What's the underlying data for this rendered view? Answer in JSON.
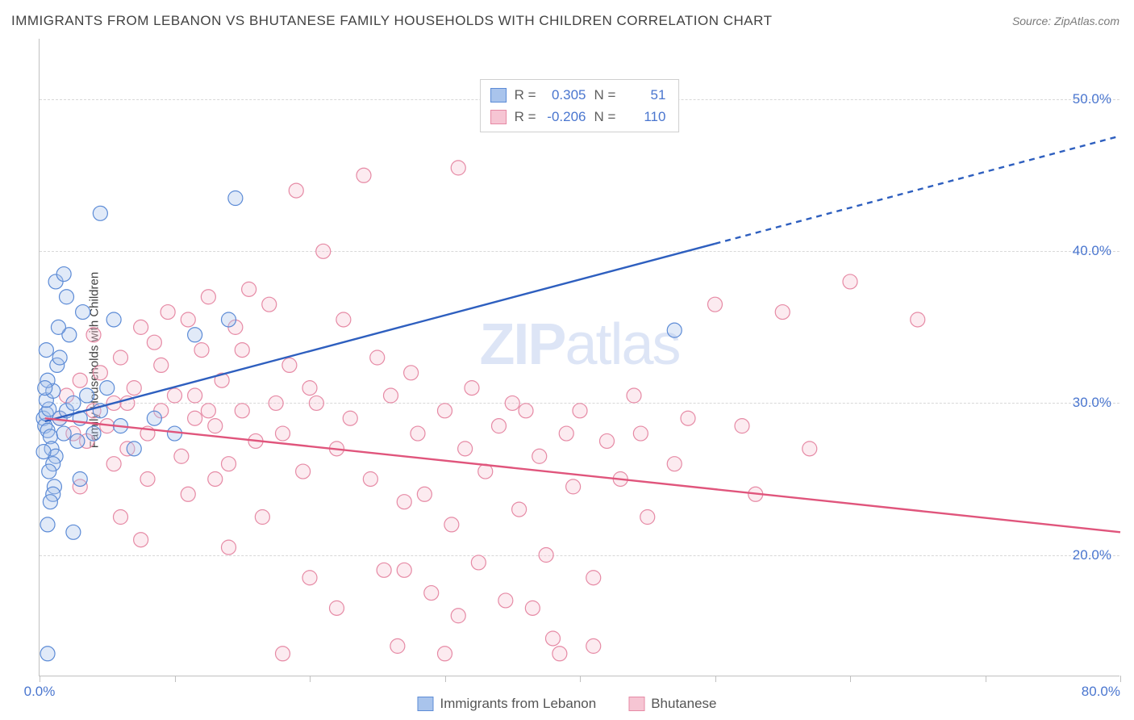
{
  "title": "IMMIGRANTS FROM LEBANON VS BHUTANESE FAMILY HOUSEHOLDS WITH CHILDREN CORRELATION CHART",
  "source": "Source: ZipAtlas.com",
  "y_axis_label": "Family Households with Children",
  "watermark_a": "ZIP",
  "watermark_b": "atlas",
  "chart": {
    "type": "scatter-correlation",
    "background_color": "#ffffff",
    "grid_color": "#d8d8d8",
    "axis_color": "#c0c0c0",
    "tick_label_color": "#4a76cf",
    "tick_fontsize": 17,
    "title_fontsize": 17,
    "title_color": "#424242",
    "xlim": [
      0,
      80
    ],
    "ylim": [
      12,
      54
    ],
    "y_gridlines": [
      20,
      30,
      40,
      50
    ],
    "y_tick_labels": [
      "20.0%",
      "30.0%",
      "40.0%",
      "50.0%"
    ],
    "x_ticks": [
      0,
      10,
      20,
      30,
      40,
      50,
      60,
      70,
      80
    ],
    "x_tick_labels": {
      "0": "0.0%",
      "80": "80.0%"
    },
    "marker_radius": 9,
    "marker_stroke_width": 1.2,
    "marker_fill_opacity": 0.35,
    "line_width": 2.4
  },
  "series": [
    {
      "name": "Immigrants from Lebanon",
      "color_stroke": "#5c8bd6",
      "color_fill": "#a9c4ec",
      "trend_color": "#2e5fbf",
      "R": "0.305",
      "N": "51",
      "trend": {
        "x1": 0.4,
        "y1": 28.8,
        "x2": 50.0,
        "y2": 40.5,
        "x_solid_end": 50.0,
        "x_dash_end": 80.0,
        "y_dash_end": 47.6
      },
      "points": [
        [
          0.3,
          29.0
        ],
        [
          0.4,
          28.5
        ],
        [
          0.5,
          29.3
        ],
        [
          0.6,
          28.2
        ],
        [
          0.7,
          29.6
        ],
        [
          0.8,
          27.8
        ],
        [
          0.5,
          30.2
        ],
        [
          0.9,
          27.0
        ],
        [
          1.0,
          30.8
        ],
        [
          1.2,
          26.5
        ],
        [
          0.6,
          31.5
        ],
        [
          1.5,
          29.0
        ],
        [
          1.0,
          26.0
        ],
        [
          0.7,
          25.5
        ],
        [
          1.3,
          32.5
        ],
        [
          1.8,
          28.0
        ],
        [
          1.1,
          24.5
        ],
        [
          2.0,
          29.5
        ],
        [
          1.5,
          33.0
        ],
        [
          2.5,
          30.0
        ],
        [
          1.0,
          24.0
        ],
        [
          0.5,
          33.5
        ],
        [
          2.2,
          34.5
        ],
        [
          2.8,
          27.5
        ],
        [
          1.4,
          35.0
        ],
        [
          3.0,
          29.0
        ],
        [
          0.8,
          23.5
        ],
        [
          3.5,
          30.5
        ],
        [
          2.0,
          37.0
        ],
        [
          4.0,
          28.0
        ],
        [
          1.2,
          38.0
        ],
        [
          0.6,
          22.0
        ],
        [
          4.5,
          29.5
        ],
        [
          5.0,
          31.0
        ],
        [
          3.2,
          36.0
        ],
        [
          1.8,
          38.5
        ],
        [
          6.0,
          28.5
        ],
        [
          5.5,
          35.5
        ],
        [
          7.0,
          27.0
        ],
        [
          8.5,
          29.0
        ],
        [
          10.0,
          28.0
        ],
        [
          11.5,
          34.5
        ],
        [
          14.0,
          35.5
        ],
        [
          14.5,
          43.5
        ],
        [
          4.5,
          42.5
        ],
        [
          47.0,
          34.8
        ],
        [
          2.5,
          21.5
        ],
        [
          3.0,
          25.0
        ],
        [
          0.3,
          26.8
        ],
        [
          0.4,
          31.0
        ],
        [
          0.6,
          13.5
        ]
      ]
    },
    {
      "name": "Bhutanese",
      "color_stroke": "#e68aa5",
      "color_fill": "#f6c5d3",
      "trend_color": "#e0557c",
      "R": "-0.206",
      "N": "110",
      "trend": {
        "x1": 0.4,
        "y1": 29.0,
        "x2": 80.0,
        "y2": 21.5,
        "x_solid_end": 80.0
      },
      "points": [
        [
          1.5,
          29.0
        ],
        [
          2.0,
          30.5
        ],
        [
          2.5,
          28.0
        ],
        [
          3.0,
          31.5
        ],
        [
          3.5,
          27.5
        ],
        [
          4.0,
          29.5
        ],
        [
          4.5,
          32.0
        ],
        [
          5.0,
          28.5
        ],
        [
          5.5,
          30.0
        ],
        [
          6.0,
          33.0
        ],
        [
          6.5,
          27.0
        ],
        [
          7.0,
          31.0
        ],
        [
          7.5,
          35.0
        ],
        [
          8.0,
          28.0
        ],
        [
          8.5,
          34.0
        ],
        [
          9.0,
          29.5
        ],
        [
          9.5,
          36.0
        ],
        [
          10.0,
          30.5
        ],
        [
          10.5,
          26.5
        ],
        [
          11.0,
          35.5
        ],
        [
          11.5,
          29.0
        ],
        [
          12.0,
          33.5
        ],
        [
          12.5,
          37.0
        ],
        [
          13.0,
          28.5
        ],
        [
          13.5,
          31.5
        ],
        [
          14.0,
          26.0
        ],
        [
          14.5,
          35.0
        ],
        [
          15.0,
          29.5
        ],
        [
          15.5,
          37.5
        ],
        [
          16.0,
          27.5
        ],
        [
          17.0,
          36.5
        ],
        [
          18.0,
          28.0
        ],
        [
          18.5,
          32.5
        ],
        [
          19.0,
          44.0
        ],
        [
          19.5,
          25.5
        ],
        [
          20.0,
          31.0
        ],
        [
          20.5,
          30.0
        ],
        [
          21.0,
          40.0
        ],
        [
          22.0,
          27.0
        ],
        [
          22.5,
          35.5
        ],
        [
          23.0,
          29.0
        ],
        [
          24.0,
          45.0
        ],
        [
          24.5,
          25.0
        ],
        [
          25.0,
          33.0
        ],
        [
          25.5,
          19.0
        ],
        [
          26.0,
          30.5
        ],
        [
          27.0,
          23.5
        ],
        [
          27.5,
          32.0
        ],
        [
          28.0,
          28.0
        ],
        [
          28.5,
          24.0
        ],
        [
          29.0,
          17.5
        ],
        [
          30.0,
          29.5
        ],
        [
          30.5,
          22.0
        ],
        [
          31.0,
          45.5
        ],
        [
          31.5,
          27.0
        ],
        [
          32.0,
          31.0
        ],
        [
          32.5,
          19.5
        ],
        [
          33.0,
          25.5
        ],
        [
          34.0,
          28.5
        ],
        [
          34.5,
          17.0
        ],
        [
          35.0,
          30.0
        ],
        [
          35.5,
          23.0
        ],
        [
          36.0,
          29.5
        ],
        [
          37.0,
          26.5
        ],
        [
          37.5,
          20.0
        ],
        [
          38.0,
          14.5
        ],
        [
          39.0,
          28.0
        ],
        [
          39.5,
          24.5
        ],
        [
          40.0,
          29.5
        ],
        [
          41.0,
          18.5
        ],
        [
          42.0,
          27.5
        ],
        [
          43.0,
          25.0
        ],
        [
          44.0,
          30.5
        ],
        [
          45.0,
          22.5
        ],
        [
          47.0,
          26.0
        ],
        [
          48.0,
          29.0
        ],
        [
          50.0,
          36.5
        ],
        [
          52.0,
          28.5
        ],
        [
          53.0,
          24.0
        ],
        [
          55.0,
          36.0
        ],
        [
          57.0,
          27.0
        ],
        [
          60.0,
          38.0
        ],
        [
          65.0,
          35.5
        ],
        [
          18.0,
          13.5
        ],
        [
          30.0,
          13.5
        ],
        [
          26.5,
          14.0
        ],
        [
          38.5,
          13.5
        ],
        [
          14.0,
          20.5
        ],
        [
          6.0,
          22.5
        ],
        [
          8.0,
          25.0
        ],
        [
          3.0,
          24.5
        ],
        [
          11.0,
          24.0
        ],
        [
          16.5,
          22.5
        ],
        [
          5.5,
          26.0
        ],
        [
          7.5,
          21.0
        ],
        [
          12.5,
          29.5
        ],
        [
          20.0,
          18.5
        ],
        [
          22.0,
          16.5
        ],
        [
          27.0,
          19.0
        ],
        [
          31.0,
          16.0
        ],
        [
          36.5,
          16.5
        ],
        [
          4.0,
          34.5
        ],
        [
          6.5,
          30.0
        ],
        [
          9.0,
          32.5
        ],
        [
          13.0,
          25.0
        ],
        [
          15.0,
          33.5
        ],
        [
          17.5,
          30.0
        ],
        [
          44.5,
          28.0
        ],
        [
          11.5,
          30.5
        ],
        [
          41.0,
          14.0
        ]
      ]
    }
  ],
  "legend_top_labels": {
    "R": "R =",
    "N": "N ="
  },
  "legend_bottom": [
    {
      "label": "Immigrants from Lebanon",
      "series_idx": 0
    },
    {
      "label": "Bhutanese",
      "series_idx": 1
    }
  ]
}
